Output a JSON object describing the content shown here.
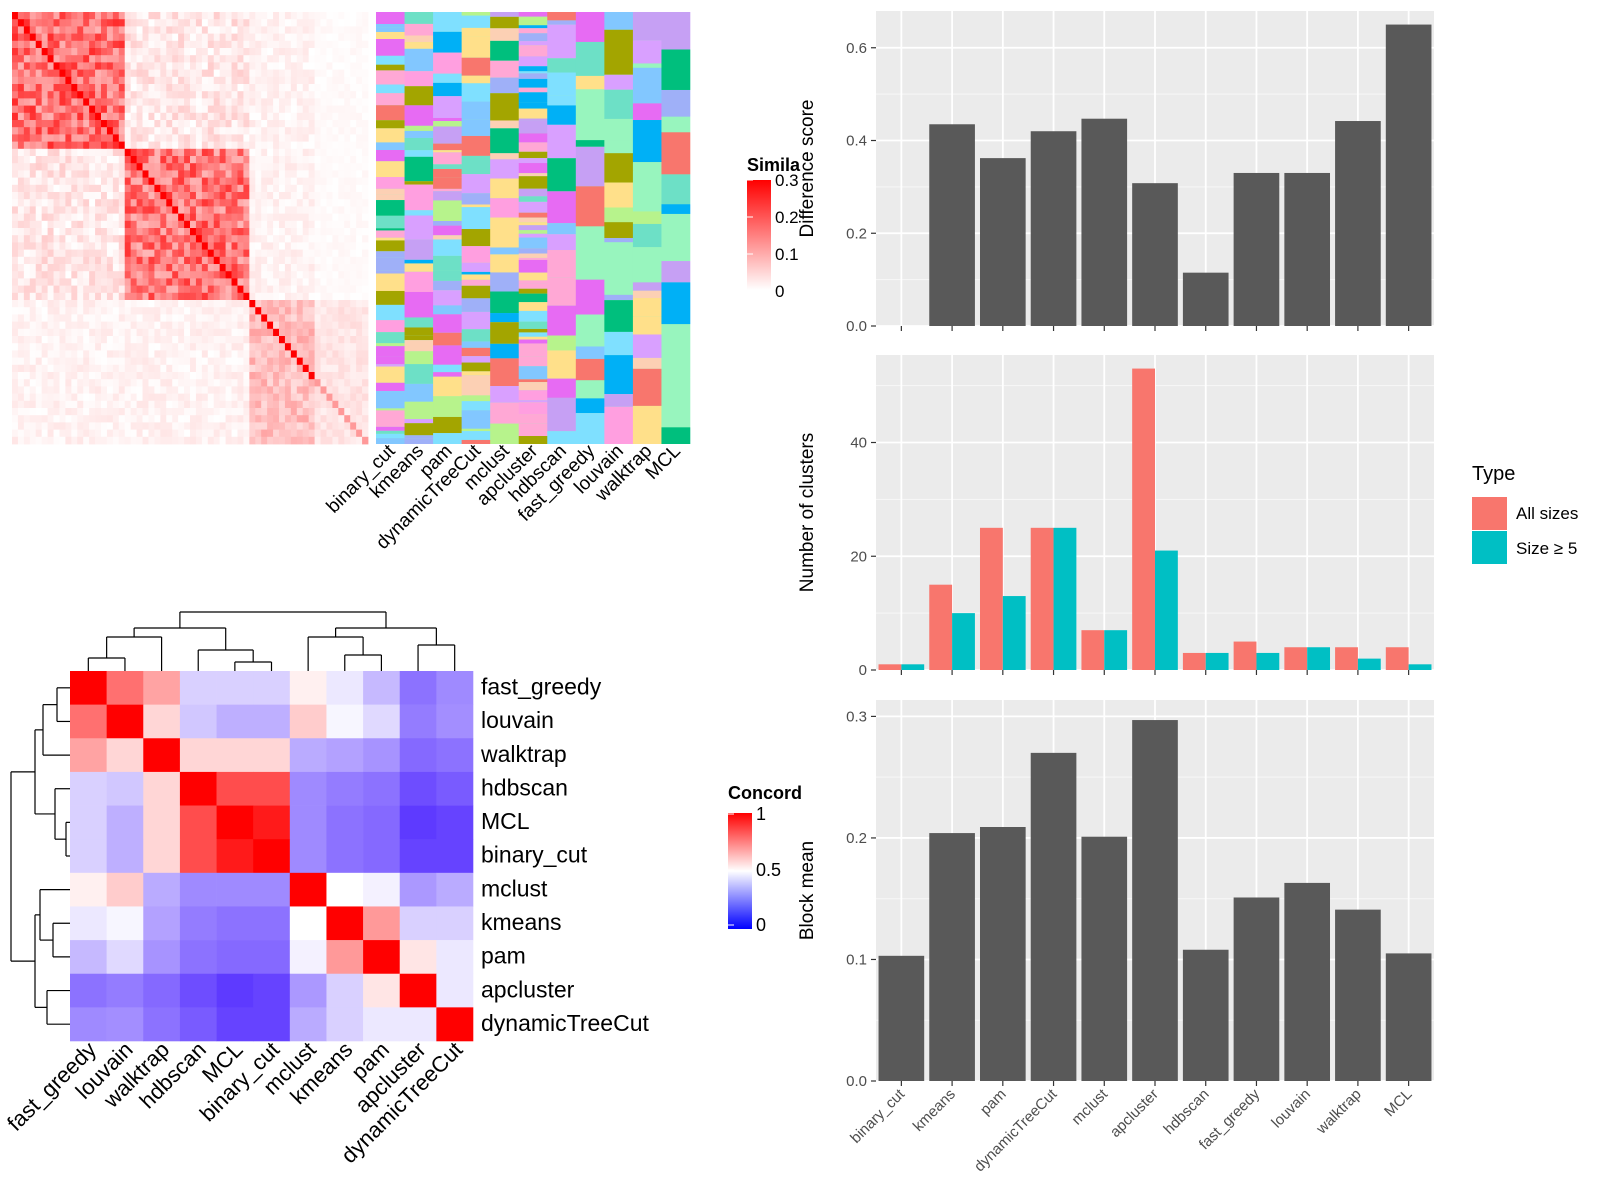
{
  "methods": [
    "binary_cut",
    "kmeans",
    "pam",
    "dynamicTreeCut",
    "mclust",
    "apcluster",
    "hdbscan",
    "fast_greedy",
    "louvain",
    "walktrap",
    "MCL"
  ],
  "similarity_legend": {
    "title": "Simila",
    "ticks": [
      "0.3",
      "0.2",
      "0.1",
      "0"
    ]
  },
  "concordance_legend": {
    "title": "Concord",
    "ticks": [
      "1",
      "0.5",
      "0"
    ]
  },
  "type_legend": {
    "title": "Type",
    "items": [
      {
        "label": "All sizes",
        "color": "#F8766D"
      },
      {
        "label": "Size ≥ 5",
        "color": "#00BFC4"
      }
    ]
  },
  "concordance_order": [
    "fast_greedy",
    "louvain",
    "walktrap",
    "hdbscan",
    "MCL",
    "binary_cut",
    "mclust",
    "kmeans",
    "pam",
    "apcluster",
    "dynamicTreeCut"
  ],
  "chart_data": [
    {
      "type": "heatmap",
      "id": "similarity-heatmap",
      "legend_title": "Simila",
      "range": [
        0,
        0.3
      ],
      "colors": [
        "#FFFFFF",
        "#FF0000"
      ]
    },
    {
      "type": "heatmap",
      "id": "cluster-assignment-heatmap",
      "columns": [
        "binary_cut",
        "kmeans",
        "pam",
        "dynamicTreeCut",
        "mclust",
        "apcluster",
        "hdbscan",
        "fast_greedy",
        "louvain",
        "walktrap",
        "MCL"
      ]
    },
    {
      "type": "heatmap",
      "id": "concordance-heatmap",
      "legend_title": "Concord",
      "range": [
        0,
        1
      ],
      "colors": [
        "#0000FF",
        "#FFFFFF",
        "#FF0000"
      ],
      "rows": [
        "fast_greedy",
        "louvain",
        "walktrap",
        "hdbscan",
        "MCL",
        "binary_cut",
        "mclust",
        "kmeans",
        "pam",
        "apcluster",
        "dynamicTreeCut"
      ],
      "columns": [
        "fast_greedy",
        "louvain",
        "walktrap",
        "hdbscan",
        "MCL",
        "binary_cut",
        "mclust",
        "kmeans",
        "pam",
        "apcluster",
        "dynamicTreeCut"
      ],
      "values": [
        [
          1.0,
          0.78,
          0.68,
          0.4,
          0.4,
          0.4,
          0.53,
          0.45,
          0.35,
          0.2,
          0.25
        ],
        [
          0.78,
          1.0,
          0.58,
          0.38,
          0.33,
          0.33,
          0.6,
          0.48,
          0.42,
          0.22,
          0.26
        ],
        [
          0.68,
          0.58,
          1.0,
          0.58,
          0.58,
          0.58,
          0.32,
          0.3,
          0.27,
          0.18,
          0.2
        ],
        [
          0.4,
          0.38,
          0.58,
          1.0,
          0.85,
          0.85,
          0.25,
          0.22,
          0.2,
          0.12,
          0.15
        ],
        [
          0.4,
          0.33,
          0.58,
          0.85,
          1.0,
          0.95,
          0.25,
          0.2,
          0.18,
          0.08,
          0.1
        ],
        [
          0.4,
          0.33,
          0.58,
          0.85,
          0.95,
          1.0,
          0.25,
          0.2,
          0.18,
          0.1,
          0.1
        ],
        [
          0.53,
          0.6,
          0.32,
          0.25,
          0.25,
          0.25,
          1.0,
          0.5,
          0.47,
          0.28,
          0.32
        ],
        [
          0.45,
          0.48,
          0.3,
          0.22,
          0.2,
          0.2,
          0.5,
          1.0,
          0.7,
          0.4,
          0.4
        ],
        [
          0.35,
          0.42,
          0.27,
          0.2,
          0.18,
          0.18,
          0.47,
          0.7,
          1.0,
          0.55,
          0.45
        ],
        [
          0.2,
          0.22,
          0.18,
          0.12,
          0.08,
          0.1,
          0.28,
          0.4,
          0.55,
          1.0,
          0.45
        ],
        [
          0.25,
          0.26,
          0.2,
          0.15,
          0.1,
          0.1,
          0.32,
          0.4,
          0.45,
          0.45,
          1.0
        ]
      ]
    },
    {
      "type": "bar",
      "id": "difference-score",
      "ylabel": "Difference score",
      "ylim": [
        0,
        0.65
      ],
      "yticks": [
        "0.0",
        "0.2",
        "0.4",
        "0.6"
      ],
      "categories": [
        "binary_cut",
        "kmeans",
        "pam",
        "dynamicTreeCut",
        "mclust",
        "apcluster",
        "hdbscan",
        "fast_greedy",
        "louvain",
        "walktrap",
        "MCL"
      ],
      "values": [
        0.0,
        0.435,
        0.362,
        0.42,
        0.447,
        0.308,
        0.115,
        0.33,
        0.33,
        0.442,
        0.65
      ]
    },
    {
      "type": "bar",
      "id": "number-of-clusters",
      "ylabel": "Number of clusters",
      "ylim": [
        0,
        53
      ],
      "yticks": [
        "0",
        "20",
        "40"
      ],
      "categories": [
        "binary_cut",
        "kmeans",
        "pam",
        "dynamicTreeCut",
        "mclust",
        "apcluster",
        "hdbscan",
        "fast_greedy",
        "louvain",
        "walktrap",
        "MCL"
      ],
      "series": [
        {
          "name": "All sizes",
          "values": [
            1,
            15,
            25,
            25,
            7,
            53,
            3,
            5,
            4,
            4,
            4
          ]
        },
        {
          "name": "Size ≥ 5",
          "values": [
            1,
            10,
            13,
            25,
            7,
            21,
            3,
            3,
            4,
            2,
            1
          ]
        }
      ]
    },
    {
      "type": "bar",
      "id": "block-mean",
      "ylabel": "Block mean",
      "ylim": [
        0,
        0.3
      ],
      "yticks": [
        "0.0",
        "0.1",
        "0.2",
        "0.3"
      ],
      "categories": [
        "binary_cut",
        "kmeans",
        "pam",
        "dynamicTreeCut",
        "mclust",
        "apcluster",
        "hdbscan",
        "fast_greedy",
        "louvain",
        "walktrap",
        "MCL"
      ],
      "values": [
        0.103,
        0.204,
        0.209,
        0.27,
        0.201,
        0.297,
        0.108,
        0.151,
        0.163,
        0.141,
        0.105
      ]
    }
  ]
}
